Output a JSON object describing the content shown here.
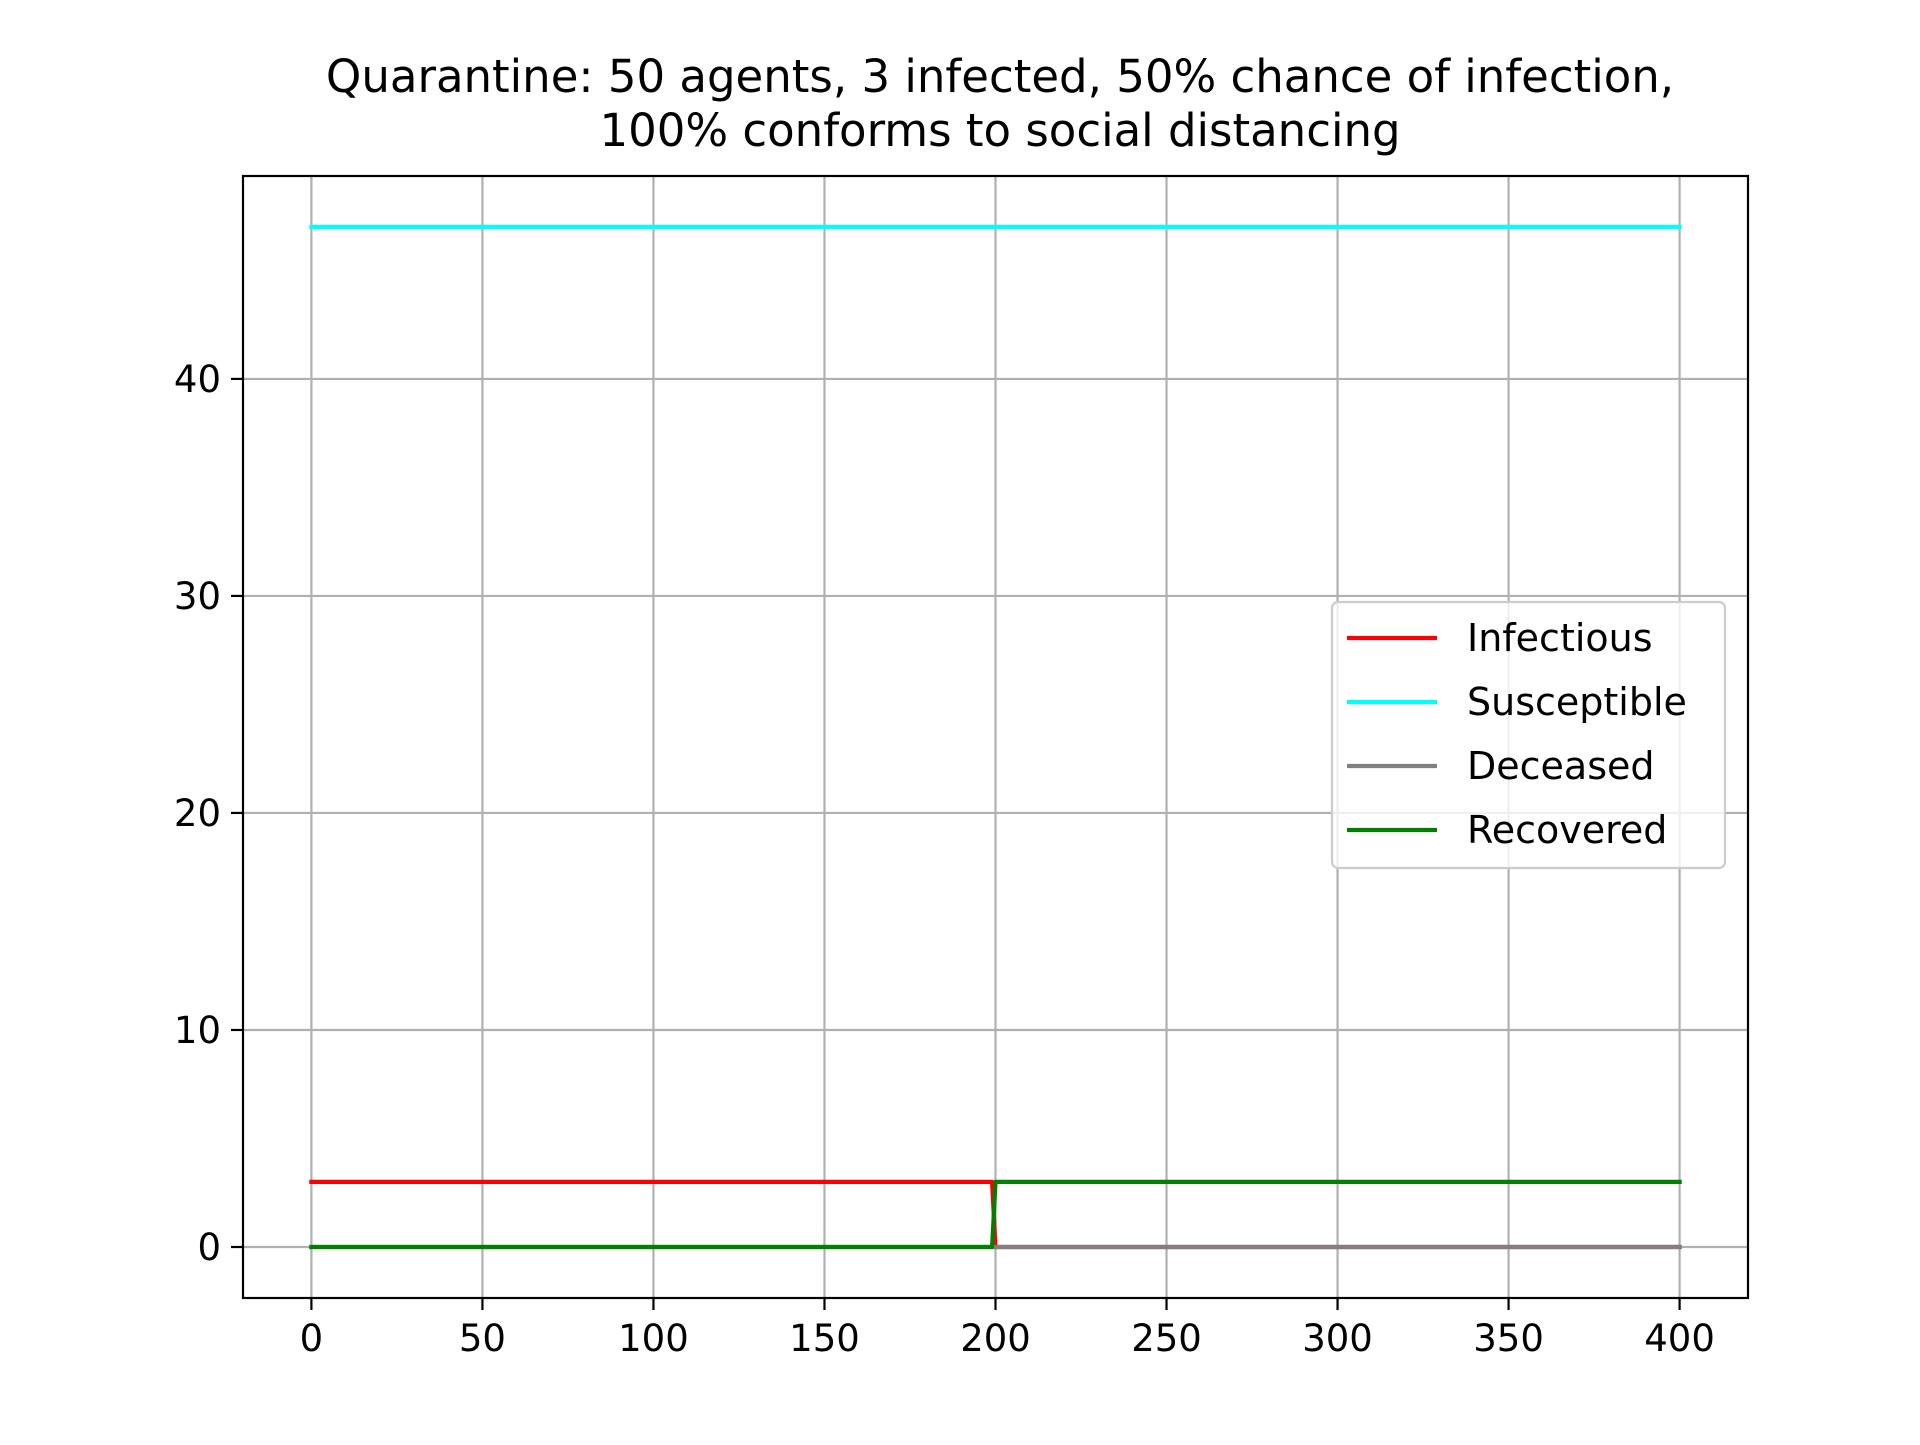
{
  "chart_data": {
    "type": "line",
    "title_lines": [
      "Quarantine: 50 agents, 3 infected, 50% chance of infection,",
      "100% conforms to social distancing"
    ],
    "xlabel": "",
    "ylabel": "",
    "xlim": [
      -20,
      420
    ],
    "ylim": [
      -2.35,
      49.35
    ],
    "x_ticks": [
      0,
      50,
      100,
      150,
      200,
      250,
      300,
      350,
      400
    ],
    "y_ticks": [
      0,
      10,
      20,
      30,
      40
    ],
    "grid": true,
    "legend_position": "center-right",
    "series": [
      {
        "name": "Infectious",
        "color": "#ff0000",
        "points": [
          [
            0,
            3
          ],
          [
            199,
            3
          ],
          [
            200,
            0
          ],
          [
            400,
            0
          ]
        ]
      },
      {
        "name": "Susceptible",
        "color": "#00ffff",
        "points": [
          [
            0,
            47
          ],
          [
            400,
            47
          ]
        ]
      },
      {
        "name": "Deceased",
        "color": "#808080",
        "points": [
          [
            0,
            0
          ],
          [
            400,
            0
          ]
        ]
      },
      {
        "name": "Recovered",
        "color": "#008000",
        "points": [
          [
            0,
            0
          ],
          [
            199,
            0
          ],
          [
            200,
            3
          ],
          [
            400,
            3
          ]
        ]
      }
    ]
  }
}
